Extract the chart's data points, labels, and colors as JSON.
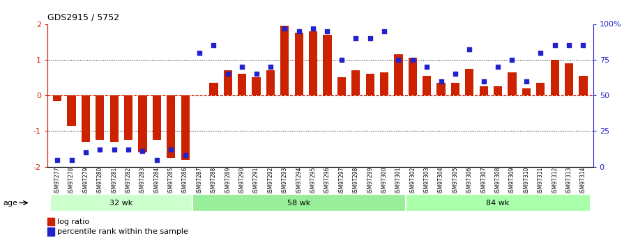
{
  "title": "GDS2915 / 5752",
  "samples": [
    "GSM97277",
    "GSM97278",
    "GSM97279",
    "GSM97280",
    "GSM97281",
    "GSM97282",
    "GSM97283",
    "GSM97284",
    "GSM97285",
    "GSM97286",
    "GSM97287",
    "GSM97288",
    "GSM97289",
    "GSM97290",
    "GSM97291",
    "GSM97292",
    "GSM97293",
    "GSM97294",
    "GSM97295",
    "GSM97296",
    "GSM97297",
    "GSM97298",
    "GSM97299",
    "GSM97300",
    "GSM97301",
    "GSM97302",
    "GSM97303",
    "GSM97304",
    "GSM97305",
    "GSM97306",
    "GSM97307",
    "GSM97308",
    "GSM97309",
    "GSM97310",
    "GSM97311",
    "GSM97312",
    "GSM97313",
    "GSM97314"
  ],
  "log_ratio": [
    -0.15,
    -0.85,
    -1.3,
    -1.25,
    -1.3,
    -1.25,
    -1.6,
    -1.25,
    -1.75,
    -1.8,
    0.0,
    0.35,
    0.7,
    0.6,
    0.5,
    0.7,
    1.95,
    1.75,
    1.8,
    1.7,
    0.5,
    0.7,
    0.6,
    0.65,
    1.15,
    1.05,
    0.55,
    0.35,
    0.35,
    0.75,
    0.25,
    0.25,
    0.65,
    0.2,
    0.35,
    1.0,
    0.9,
    0.55
  ],
  "percentile": [
    5,
    5,
    10,
    12,
    12,
    12,
    11,
    5,
    12,
    8,
    80,
    85,
    65,
    70,
    65,
    70,
    97,
    95,
    97,
    95,
    75,
    90,
    90,
    95,
    75,
    75,
    70,
    60,
    65,
    82,
    60,
    70,
    75,
    60,
    80,
    85,
    85,
    85
  ],
  "groups": [
    {
      "label": "32 wk",
      "start": 0,
      "end": 9
    },
    {
      "label": "58 wk",
      "start": 10,
      "end": 24
    },
    {
      "label": "84 wk",
      "start": 25,
      "end": 37
    }
  ],
  "bar_color": "#cc2200",
  "dot_color": "#2222cc",
  "bg_color": "#ffffff",
  "group_colors": [
    "#ccffcc",
    "#99ee99",
    "#aaffaa"
  ],
  "ylim": [
    -2,
    2
  ],
  "y2lim": [
    0,
    100
  ],
  "y_ticks": [
    -2,
    -1,
    0,
    1,
    2
  ],
  "y2_ticks": [
    0,
    25,
    50,
    75,
    100
  ],
  "y2_labels": [
    "0",
    "25",
    "50",
    "75",
    "100%"
  ]
}
